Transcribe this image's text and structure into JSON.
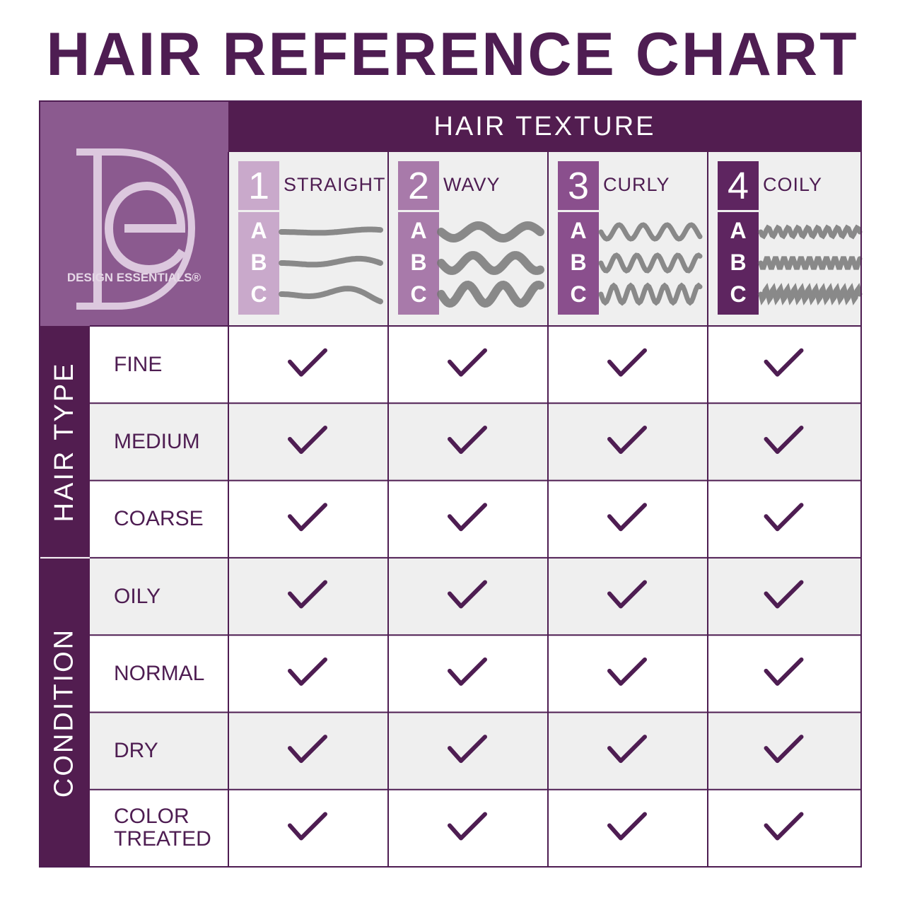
{
  "title": "HAIR REFERENCE CHART",
  "brand": "DESIGN ESSENTIALS®",
  "header": "HAIR TEXTURE",
  "textures": [
    {
      "number": "1",
      "name": "STRAIGHT",
      "subtypes": [
        "A",
        "B",
        "C"
      ]
    },
    {
      "number": "2",
      "name": "WAVY",
      "subtypes": [
        "A",
        "B",
        "C"
      ]
    },
    {
      "number": "3",
      "name": "CURLY",
      "subtypes": [
        "A",
        "B",
        "C"
      ]
    },
    {
      "number": "4",
      "name": "COILY",
      "subtypes": [
        "A",
        "B",
        "C"
      ]
    }
  ],
  "groups": [
    {
      "label": "HAIR TYPE",
      "rows": [
        "FINE",
        "MEDIUM",
        "COARSE"
      ]
    },
    {
      "label": "CONDITION",
      "rows": [
        "OILY",
        "NORMAL",
        "DRY",
        "COLOR TREATED"
      ]
    }
  ]
}
